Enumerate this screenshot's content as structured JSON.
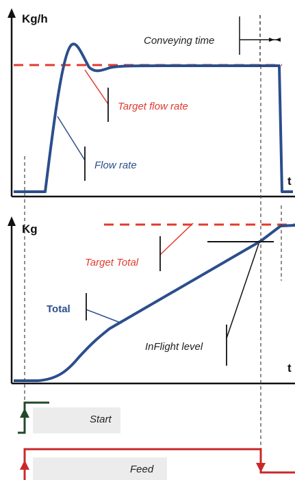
{
  "top_chart": {
    "y_axis_label": "Kg/h",
    "x_axis_label": "t",
    "labels": {
      "conveying_time": "Conveying time",
      "target_flow_rate": "Target flow rate",
      "flow_rate": "Flow rate"
    }
  },
  "bottom_chart": {
    "y_axis_label": "Kg",
    "x_axis_label": "t",
    "labels": {
      "target_total": "Target Total",
      "total": "Total",
      "inflight_level": "InFlight level"
    }
  },
  "signals": {
    "start_label": "Start",
    "feed_label": "Feed"
  },
  "colors": {
    "axis": "#111111",
    "curve": "#2b4e8c",
    "target": "#e23a2e",
    "start_signal": "#1f4a2a",
    "feed_signal": "#c8282a",
    "label_box": "#ececec"
  }
}
